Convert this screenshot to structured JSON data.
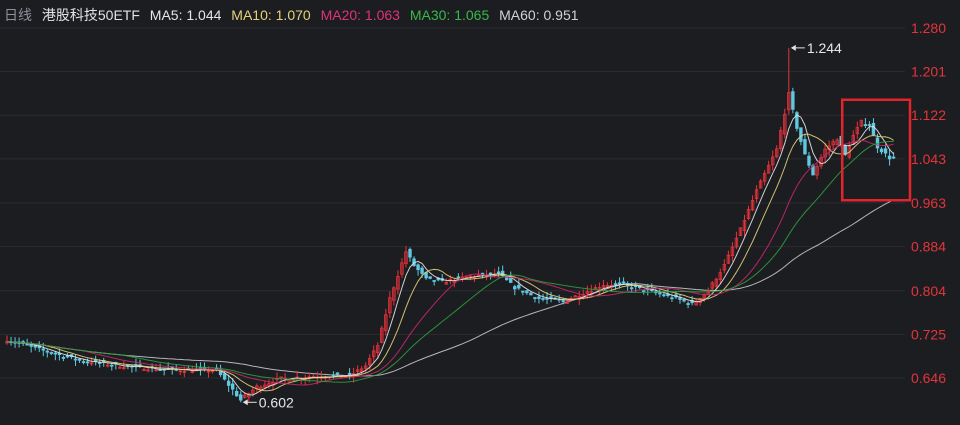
{
  "header": {
    "timeframe": "日线",
    "name": "港股科技50ETF",
    "indicators": [
      {
        "label": "MA5: 1.044",
        "color": "#e6e6e6"
      },
      {
        "label": "MA10: 1.070",
        "color": "#e3d27a"
      },
      {
        "label": "MA20: 1.063",
        "color": "#e0327a"
      },
      {
        "label": "MA30: 1.065",
        "color": "#39b84a"
      },
      {
        "label": "MA60: 0.951",
        "color": "#d0d2d6"
      }
    ]
  },
  "chart_data": {
    "type": "candlestick",
    "y_axis": {
      "side": "right",
      "ticks": [
        1.28,
        1.201,
        1.122,
        1.043,
        0.963,
        0.884,
        0.804,
        0.725,
        0.646
      ],
      "color": "#e2353b"
    },
    "grid": true,
    "high_annotation": {
      "label": "1.244",
      "value": 1.244
    },
    "low_annotation": {
      "label": "0.602",
      "value": 0.602
    },
    "highlight_box": {
      "color": "#e0252b",
      "description": "most recent sessions"
    },
    "moving_averages": [
      {
        "name": "MA5",
        "color": "#e6e6e6"
      },
      {
        "name": "MA10",
        "color": "#e3d27a"
      },
      {
        "name": "MA20",
        "color": "#c8286a"
      },
      {
        "name": "MA30",
        "color": "#2e9e3c"
      },
      {
        "name": "MA60",
        "color": "#c6c8cc"
      }
    ],
    "colors": {
      "up": "#e8323a",
      "down": "#5fc9e0"
    },
    "segments": [
      [
        0,
        0.715
      ],
      [
        7,
        0.7
      ],
      [
        18,
        0.678
      ],
      [
        28,
        0.668
      ],
      [
        38,
        0.662
      ],
      [
        46,
        0.66
      ],
      [
        52,
        0.66
      ],
      [
        56,
        0.625
      ],
      [
        58,
        0.606
      ],
      [
        62,
        0.63
      ],
      [
        68,
        0.645
      ],
      [
        78,
        0.65
      ],
      [
        85,
        0.65
      ],
      [
        89,
        0.668
      ],
      [
        92,
        0.705
      ],
      [
        95,
        0.79
      ],
      [
        99,
        0.875
      ],
      [
        101,
        0.85
      ],
      [
        104,
        0.825
      ],
      [
        108,
        0.82
      ],
      [
        115,
        0.83
      ],
      [
        122,
        0.835
      ],
      [
        126,
        0.81
      ],
      [
        132,
        0.79
      ],
      [
        138,
        0.785
      ],
      [
        143,
        0.8
      ],
      [
        148,
        0.815
      ],
      [
        153,
        0.815
      ],
      [
        160,
        0.802
      ],
      [
        166,
        0.79
      ],
      [
        170,
        0.78
      ],
      [
        174,
        0.805
      ],
      [
        178,
        0.85
      ],
      [
        182,
        0.915
      ],
      [
        186,
        0.985
      ],
      [
        191,
        1.06
      ],
      [
        194,
        1.16
      ],
      [
        196,
        1.1
      ],
      [
        198,
        1.05
      ],
      [
        200,
        1.015
      ],
      [
        203,
        1.06
      ],
      [
        206,
        1.08
      ],
      [
        208,
        1.05
      ],
      [
        210,
        1.085
      ],
      [
        212,
        1.11
      ],
      [
        214,
        1.105
      ],
      [
        216,
        1.065
      ],
      [
        219,
        1.045
      ],
      [
        220,
        1.044
      ]
    ]
  }
}
